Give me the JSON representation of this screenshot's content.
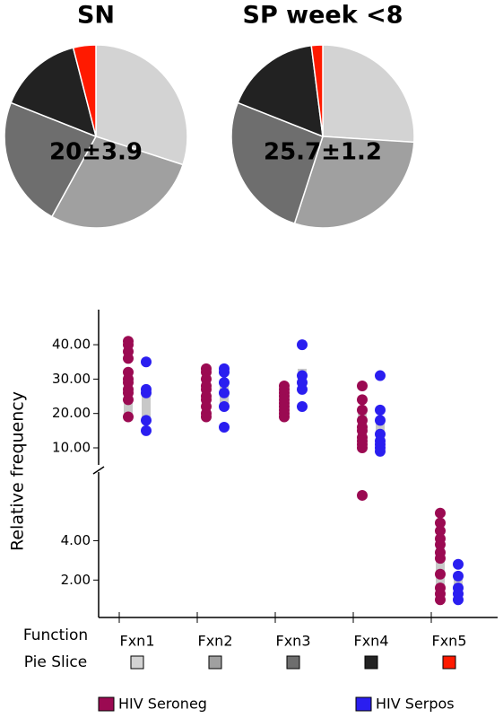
{
  "chart_data": [
    {
      "type": "pie",
      "title": "SN",
      "annotation": "20±3.9",
      "values": [
        30,
        28,
        23,
        15,
        4
      ],
      "colors": [
        "#d3d3d3",
        "#a0a0a0",
        "#6e6e6e",
        "#222222",
        "#ff1a00"
      ]
    },
    {
      "type": "pie",
      "title": "SP week <8",
      "annotation": "25.7±1.2",
      "values": [
        26,
        29,
        26,
        17,
        2
      ],
      "colors": [
        "#d3d3d3",
        "#a0a0a0",
        "#6e6e6e",
        "#222222",
        "#ff1a00"
      ]
    },
    {
      "type": "strip",
      "y_label": "Relative frequency",
      "x_row_label": "Function",
      "slice_row_label": "Pie Slice",
      "categories": [
        "Fxn1",
        "Fxn2",
        "Fxn3",
        "Fxn4",
        "Fxn5"
      ],
      "panels": [
        {
          "ylim": [
            0.1,
            7.3
          ],
          "yticks": [
            {
              "value": 2,
              "label": "2.00"
            },
            {
              "value": 4,
              "label": "4.00"
            }
          ]
        },
        {
          "ylim": [
            4,
            50.2
          ],
          "yticks": [
            {
              "value": 10,
              "label": "10.00"
            },
            {
              "value": 20,
              "label": "20.00"
            },
            {
              "value": 30,
              "label": "30.00"
            },
            {
              "value": 40,
              "label": "40.00"
            }
          ]
        }
      ],
      "series": [
        {
          "name": "HIV Seroneg",
          "color": "#9b0a52",
          "values": [
            [
              41,
              40,
              38,
              36,
              32,
              30,
              29,
              27,
              26,
              24,
              19
            ],
            [
              33,
              32,
              30,
              28,
              27,
              25,
              24,
              22,
              20,
              19
            ],
            [
              28,
              27,
              26,
              25,
              24,
              23,
              22,
              21,
              20,
              19
            ],
            [
              28,
              24,
              21,
              18,
              16,
              15,
              13,
              12,
              11,
              10,
              6.3
            ],
            [
              5.4,
              4.9,
              4.5,
              4.1,
              3.8,
              3.4,
              3.1,
              2.3,
              1.6,
              1.3,
              1.0
            ]
          ],
          "ranges": [
            [
              18,
              32
            ],
            [
              21,
              30
            ],
            [
              21,
              27
            ],
            [
              12,
              20
            ],
            [
              1.6,
              4.2
            ]
          ]
        },
        {
          "name": "HIV Serpos",
          "color": "#2a1ef0",
          "values": [
            [
              35,
              27,
              26,
              18,
              15
            ],
            [
              33,
              32,
              29,
              26,
              22,
              16
            ],
            [
              40,
              31,
              29,
              27,
              22
            ],
            [
              31,
              21,
              18,
              14,
              12,
              11,
              10,
              9
            ],
            [
              2.8,
              2.2,
              1.6,
              1.3,
              1.0
            ]
          ],
          "ranges": [
            [
              18,
              27
            ],
            [
              21,
              30
            ],
            [
              28,
              33
            ],
            [
              11,
              18
            ],
            [
              1.2,
              2.2
            ]
          ]
        }
      ]
    }
  ]
}
